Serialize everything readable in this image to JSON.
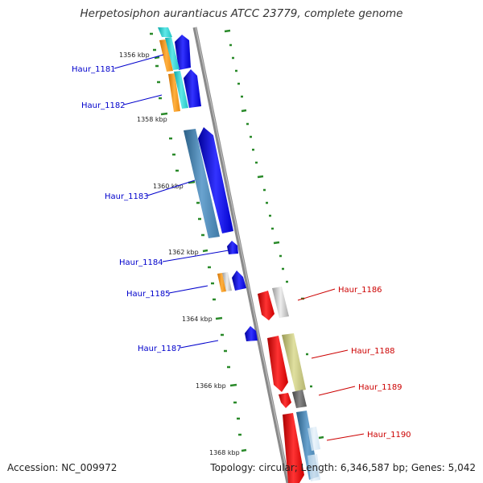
{
  "title": "Herpetosiphon aurantiacus ATCC 23779, complete genome",
  "footer": {
    "accession": "Accession: NC_009972",
    "topology": "Topology: circular; Length: 6,346,587 bp; Genes: 5,042"
  },
  "ruler": [
    {
      "label": "1356 kbp"
    },
    {
      "label": "1358 kbp"
    },
    {
      "label": "1360 kbp"
    },
    {
      "label": "1362 kbp"
    },
    {
      "label": "1364 kbp"
    },
    {
      "label": "1366 kbp"
    },
    {
      "label": "1368 kbp"
    }
  ],
  "genes": [
    {
      "name": "Haur_1181",
      "strand": "-",
      "color": "#0000cc"
    },
    {
      "name": "Haur_1182",
      "strand": "-",
      "color": "#0000cc"
    },
    {
      "name": "Haur_1183",
      "strand": "-",
      "color": "#0000cc"
    },
    {
      "name": "Haur_1184",
      "strand": "-",
      "color": "#0000cc"
    },
    {
      "name": "Haur_1185",
      "strand": "-",
      "color": "#0000cc"
    },
    {
      "name": "Haur_1186",
      "strand": "+",
      "color": "#cc0000"
    },
    {
      "name": "Haur_1187",
      "strand": "-",
      "color": "#0000cc"
    },
    {
      "name": "Haur_1188",
      "strand": "+",
      "color": "#cc0000"
    },
    {
      "name": "Haur_1189",
      "strand": "+",
      "color": "#cc0000"
    },
    {
      "name": "Haur_1190",
      "strand": "+",
      "color": "#cc0000"
    }
  ]
}
